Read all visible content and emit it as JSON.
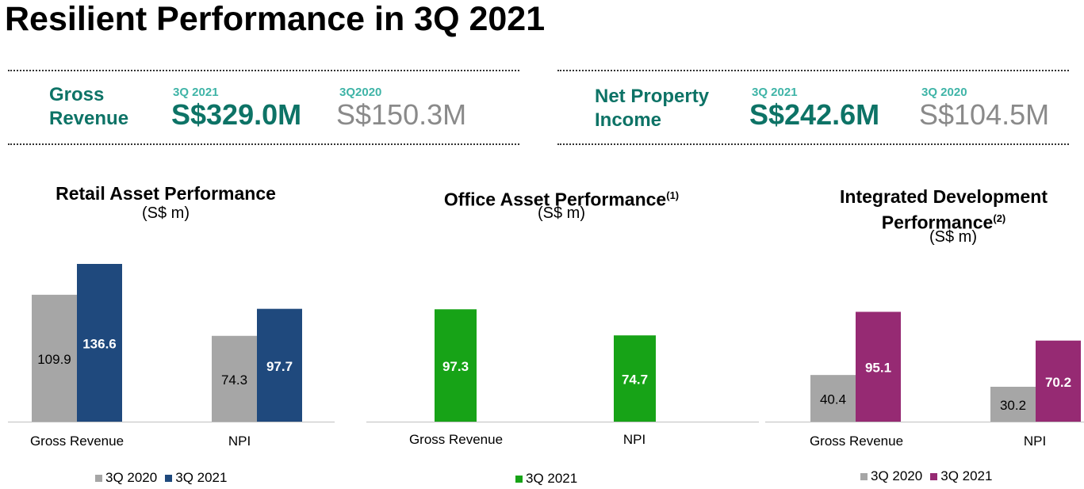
{
  "page": {
    "title": "Resilient Performance in 3Q 2021"
  },
  "kpis": [
    {
      "label_line1": "Gross",
      "label_line2": "Revenue",
      "current_period": "3Q 2021",
      "current_value": "S$329.0M",
      "prior_period": "3Q2020",
      "prior_value": "S$150.3M"
    },
    {
      "label_line1": "Net Property",
      "label_line2": "Income",
      "current_period": "3Q 2021",
      "current_value": "S$242.6M",
      "prior_period": "3Q 2020",
      "prior_value": "S$104.5M"
    }
  ],
  "colors": {
    "grey": "#a6a6a6",
    "navy": "#1f497d",
    "green": "#17a317",
    "purple": "#962a73",
    "teal": "#0d7366"
  },
  "chart_data": [
    {
      "type": "bar",
      "title": "Retail Asset Performance",
      "title_note": "",
      "unit": "(S$ m)",
      "categories": [
        "Gross Revenue",
        "NPI"
      ],
      "series": [
        {
          "name": "3Q 2020",
          "values": [
            109.9,
            74.3
          ],
          "labels": [
            "109.9",
            "74.3"
          ],
          "color": "#a6a6a6",
          "label_color": "#000000"
        },
        {
          "name": "3Q 2021",
          "values": [
            136.6,
            97.7
          ],
          "labels": [
            "136.6",
            "97.7"
          ],
          "color": "#1f497d",
          "label_color": "#ffffff"
        }
      ]
    },
    {
      "type": "bar",
      "title": "Office Asset Performance",
      "title_note": "(1)",
      "unit": "(S$ m)",
      "categories": [
        "Gross Revenue",
        "NPI"
      ],
      "series": [
        {
          "name": "3Q 2021",
          "values": [
            97.3,
            74.7
          ],
          "labels": [
            "97.3",
            "74.7"
          ],
          "color": "#17a317",
          "label_color": "#ffffff"
        }
      ]
    },
    {
      "type": "bar",
      "title": "Integrated Development",
      "title_line2": "Performance",
      "title_note": "(2)",
      "unit": "(S$ m)",
      "categories": [
        "Gross Revenue",
        "NPI"
      ],
      "series": [
        {
          "name": "3Q 2020",
          "values": [
            40.4,
            30.2
          ],
          "labels": [
            "40.4",
            "30.2"
          ],
          "color": "#a6a6a6",
          "label_color": "#000000"
        },
        {
          "name": "3Q 2021",
          "values": [
            95.1,
            70.2
          ],
          "labels": [
            "95.1",
            "70.2"
          ],
          "color": "#962a73",
          "label_color": "#ffffff"
        }
      ]
    }
  ]
}
